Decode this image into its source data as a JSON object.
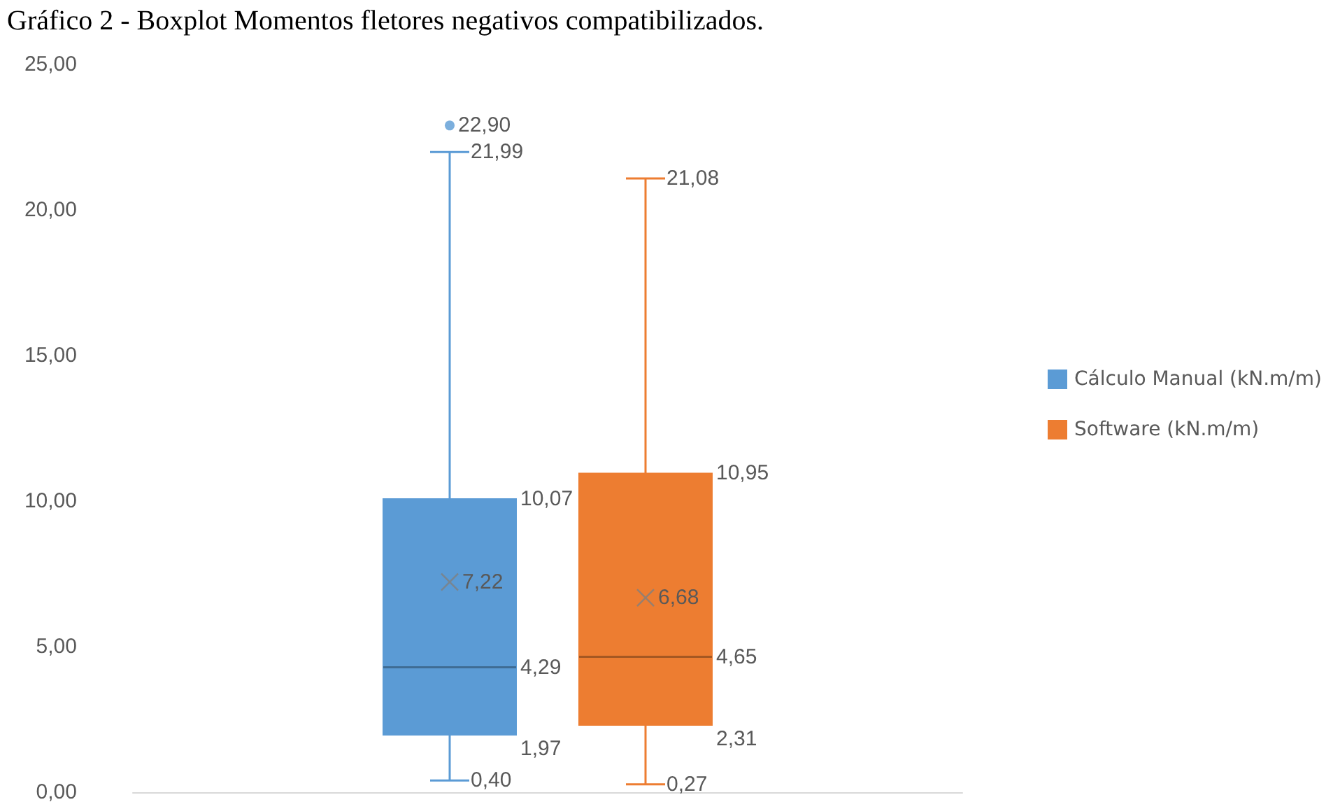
{
  "chart_data": {
    "type": "box",
    "title": "Gráfico 2 - Boxplot Momentos fletores negativos compatibilizados.",
    "categories": [
      null
    ],
    "series": [
      {
        "name": "Cálculo Manual (kN.m/m)",
        "color": "#5b9bd5",
        "boxes": [
          {
            "low": 0.4,
            "q1": 1.97,
            "median": 4.29,
            "q3": 10.07,
            "high": 21.99,
            "mean": 7.22,
            "outliers": [
              22.9
            ]
          }
        ]
      },
      {
        "name": "Software (kN.m/m)",
        "color": "#ed7d31",
        "boxes": [
          {
            "low": 0.27,
            "q1": 2.31,
            "median": 4.65,
            "q3": 10.95,
            "high": 21.08,
            "mean": 6.68
          }
        ]
      }
    ],
    "ylim": [
      0,
      25
    ],
    "yticks": [
      {
        "value": 0,
        "label": "0,00"
      },
      {
        "value": 5,
        "label": "5,00"
      },
      {
        "value": 10,
        "label": "10,00"
      },
      {
        "value": 15,
        "label": "15,00"
      },
      {
        "value": 20,
        "label": "20,00"
      },
      {
        "value": 25,
        "label": "25,00"
      }
    ],
    "annotations": [
      "22,90",
      "21,99",
      "10,07",
      "7,22",
      "4,29",
      "1,97",
      "0,40",
      "21,08",
      "10,95",
      "6,68",
      "4,65",
      "2,31",
      "0,27"
    ],
    "grid": false,
    "legend": "right"
  }
}
